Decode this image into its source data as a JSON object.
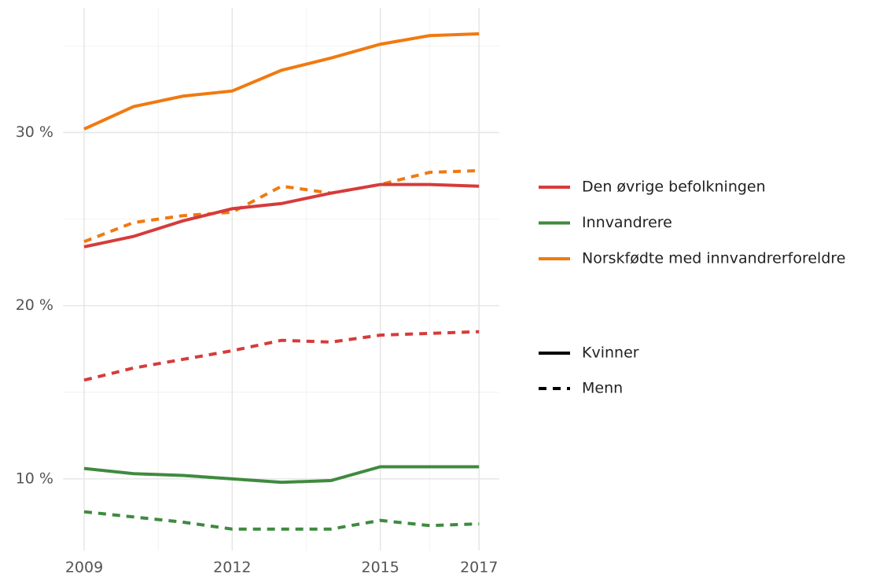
{
  "chart_data": {
    "type": "line",
    "x": [
      2009,
      2010,
      2011,
      2012,
      2013,
      2014,
      2015,
      2016,
      2017
    ],
    "xlim": [
      2008.57,
      2017.41
    ],
    "xticks": [
      2009,
      2012,
      2015,
      2017
    ],
    "x_minor_grid": [
      2010.5,
      2013.5,
      2016
    ],
    "ylim": [
      5.86,
      37.2
    ],
    "yticks": [
      {
        "value": 10,
        "label": "10 %"
      },
      {
        "value": 20,
        "label": "20 %"
      },
      {
        "value": 30,
        "label": "30 %"
      }
    ],
    "y_minor_grid": [
      15,
      25,
      35
    ],
    "grid": true,
    "legend_position": "right",
    "groups": [
      {
        "name": "Den øvrige befolkningen",
        "color": "#d63b3b"
      },
      {
        "name": "Innvandrere",
        "color": "#3f8a3f"
      },
      {
        "name": "Norskfødte med innvandrerforeldre",
        "color": "#f07a10"
      }
    ],
    "linetypes": [
      {
        "name": "Kvinner",
        "dash": "solid"
      },
      {
        "name": "Menn",
        "dash": "dashed"
      }
    ],
    "series": [
      {
        "group": 2,
        "linetype": 0,
        "values": [
          30.2,
          31.5,
          32.1,
          32.4,
          33.6,
          34.3,
          35.1,
          35.6,
          35.7
        ]
      },
      {
        "group": 2,
        "linetype": 1,
        "values": [
          23.7,
          24.8,
          25.2,
          25.4,
          26.9,
          26.5,
          27.0,
          27.7,
          27.8
        ]
      },
      {
        "group": 0,
        "linetype": 0,
        "values": [
          23.4,
          24.0,
          24.9,
          25.6,
          25.9,
          26.5,
          27.0,
          27.0,
          26.9
        ]
      },
      {
        "group": 0,
        "linetype": 1,
        "values": [
          15.7,
          16.4,
          16.9,
          17.4,
          18.0,
          17.9,
          18.3,
          18.4,
          18.5
        ]
      },
      {
        "group": 1,
        "linetype": 0,
        "values": [
          10.6,
          10.3,
          10.2,
          10.0,
          9.8,
          9.9,
          10.7,
          10.7,
          10.7
        ]
      },
      {
        "group": 1,
        "linetype": 1,
        "values": [
          8.1,
          7.8,
          7.5,
          7.1,
          7.1,
          7.1,
          7.6,
          7.3,
          7.4
        ]
      }
    ]
  }
}
